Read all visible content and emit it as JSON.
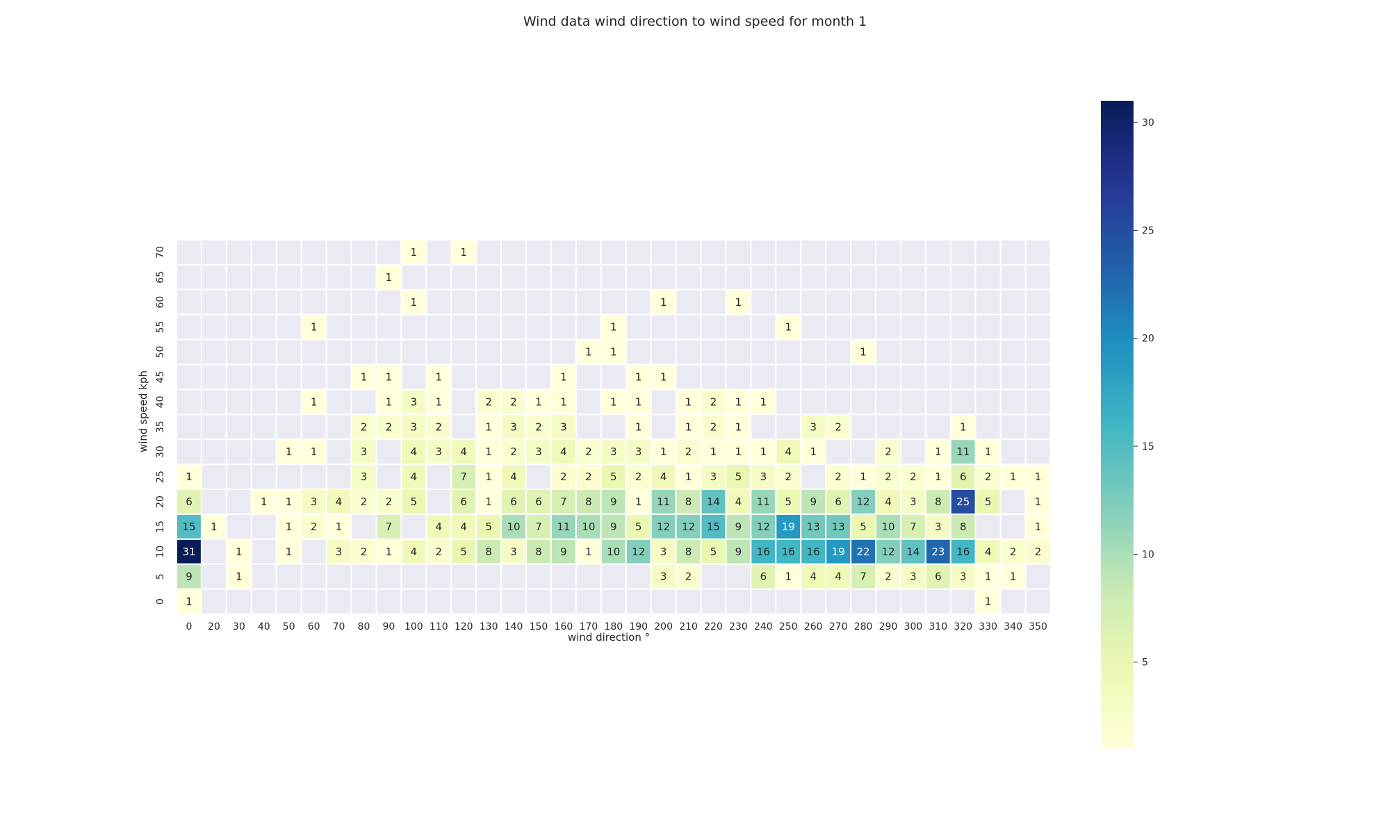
{
  "chart_data": {
    "type": "heatmap",
    "title": "Wind data wind direction to wind speed for month 1",
    "xlabel": "wind direction °",
    "ylabel": "wind speed kph",
    "x": [
      0,
      20,
      30,
      40,
      50,
      60,
      70,
      80,
      90,
      100,
      110,
      120,
      130,
      140,
      150,
      160,
      170,
      180,
      190,
      200,
      210,
      220,
      230,
      240,
      250,
      260,
      270,
      280,
      290,
      300,
      310,
      320,
      330,
      340,
      350
    ],
    "y": [
      70,
      65,
      60,
      55,
      50,
      45,
      40,
      35,
      30,
      25,
      20,
      15,
      10,
      5,
      0
    ],
    "values": [
      [
        null,
        null,
        null,
        null,
        null,
        null,
        null,
        null,
        null,
        1,
        null,
        1,
        null,
        null,
        null,
        null,
        null,
        null,
        null,
        null,
        null,
        null,
        null,
        null,
        null,
        null,
        null,
        null,
        null,
        null,
        null,
        null,
        null,
        null,
        null
      ],
      [
        null,
        null,
        null,
        null,
        null,
        null,
        null,
        null,
        1,
        null,
        null,
        null,
        null,
        null,
        null,
        null,
        null,
        null,
        null,
        null,
        null,
        null,
        null,
        null,
        null,
        null,
        null,
        null,
        null,
        null,
        null,
        null,
        null,
        null,
        null
      ],
      [
        null,
        null,
        null,
        null,
        null,
        null,
        null,
        null,
        null,
        1,
        null,
        null,
        null,
        null,
        null,
        null,
        null,
        null,
        null,
        1,
        null,
        null,
        1,
        null,
        null,
        null,
        null,
        null,
        null,
        null,
        null,
        null,
        null,
        null,
        null
      ],
      [
        null,
        null,
        null,
        null,
        null,
        1,
        null,
        null,
        null,
        null,
        null,
        null,
        null,
        null,
        null,
        null,
        null,
        1,
        null,
        null,
        null,
        null,
        null,
        null,
        1,
        null,
        null,
        null,
        null,
        null,
        null,
        null,
        null,
        null,
        null
      ],
      [
        null,
        null,
        null,
        null,
        null,
        null,
        null,
        null,
        null,
        null,
        null,
        null,
        null,
        null,
        null,
        null,
        1,
        1,
        null,
        null,
        null,
        null,
        null,
        null,
        null,
        null,
        null,
        1,
        null,
        null,
        null,
        null,
        null,
        null,
        null
      ],
      [
        null,
        null,
        null,
        null,
        null,
        null,
        null,
        1,
        1,
        null,
        1,
        null,
        null,
        null,
        null,
        1,
        null,
        null,
        1,
        1,
        null,
        null,
        null,
        null,
        null,
        null,
        null,
        null,
        null,
        null,
        null,
        null,
        null,
        null,
        null
      ],
      [
        null,
        null,
        null,
        null,
        null,
        1,
        null,
        null,
        1,
        3,
        1,
        null,
        2,
        2,
        1,
        1,
        null,
        1,
        1,
        null,
        1,
        2,
        1,
        1,
        null,
        null,
        null,
        null,
        null,
        null,
        null,
        null,
        null,
        null,
        null
      ],
      [
        null,
        null,
        null,
        null,
        null,
        null,
        null,
        2,
        2,
        3,
        2,
        null,
        1,
        3,
        2,
        3,
        null,
        null,
        1,
        null,
        1,
        2,
        1,
        null,
        null,
        3,
        2,
        null,
        null,
        null,
        null,
        1,
        null,
        null,
        null
      ],
      [
        null,
        null,
        null,
        null,
        1,
        1,
        null,
        3,
        null,
        4,
        3,
        4,
        1,
        2,
        3,
        4,
        2,
        3,
        3,
        1,
        2,
        1,
        1,
        1,
        4,
        1,
        null,
        null,
        2,
        null,
        1,
        11,
        1,
        null,
        null
      ],
      [
        1,
        null,
        null,
        null,
        null,
        null,
        null,
        3,
        null,
        4,
        null,
        7,
        1,
        4,
        null,
        2,
        2,
        5,
        2,
        4,
        1,
        3,
        5,
        3,
        2,
        null,
        2,
        1,
        2,
        2,
        1,
        6,
        2,
        1,
        1
      ],
      [
        6,
        null,
        null,
        1,
        1,
        3,
        4,
        2,
        2,
        5,
        null,
        6,
        1,
        6,
        6,
        7,
        8,
        9,
        1,
        11,
        8,
        14,
        4,
        11,
        5,
        9,
        6,
        12,
        4,
        3,
        8,
        25,
        5,
        null,
        1
      ],
      [
        15,
        1,
        null,
        null,
        1,
        2,
        1,
        null,
        7,
        null,
        4,
        4,
        5,
        10,
        7,
        11,
        10,
        9,
        5,
        12,
        12,
        15,
        9,
        12,
        19,
        13,
        13,
        5,
        10,
        7,
        3,
        8,
        null,
        null,
        1
      ],
      [
        31,
        null,
        1,
        null,
        1,
        null,
        3,
        2,
        1,
        4,
        2,
        5,
        8,
        3,
        8,
        9,
        1,
        10,
        12,
        3,
        8,
        5,
        9,
        16,
        16,
        16,
        19,
        22,
        12,
        14,
        23,
        16,
        4,
        2,
        2
      ],
      [
        9,
        null,
        1,
        null,
        null,
        null,
        null,
        null,
        null,
        null,
        null,
        null,
        null,
        null,
        null,
        null,
        null,
        null,
        null,
        3,
        2,
        null,
        null,
        6,
        1,
        4,
        4,
        7,
        2,
        3,
        6,
        3,
        1,
        1,
        null
      ],
      [
        1,
        null,
        null,
        null,
        null,
        null,
        null,
        null,
        null,
        null,
        null,
        null,
        null,
        null,
        null,
        null,
        null,
        null,
        null,
        null,
        null,
        null,
        null,
        null,
        null,
        null,
        null,
        null,
        null,
        null,
        null,
        null,
        1,
        null,
        null
      ]
    ],
    "colorbar": {
      "min": 1,
      "max": 31,
      "ticks": [
        5,
        10,
        15,
        20,
        25,
        30
      ],
      "colormap": "YlGnBu"
    },
    "colors": {
      "empty_cell": "#eaeaf2",
      "cell_border": "#ffffff"
    }
  }
}
